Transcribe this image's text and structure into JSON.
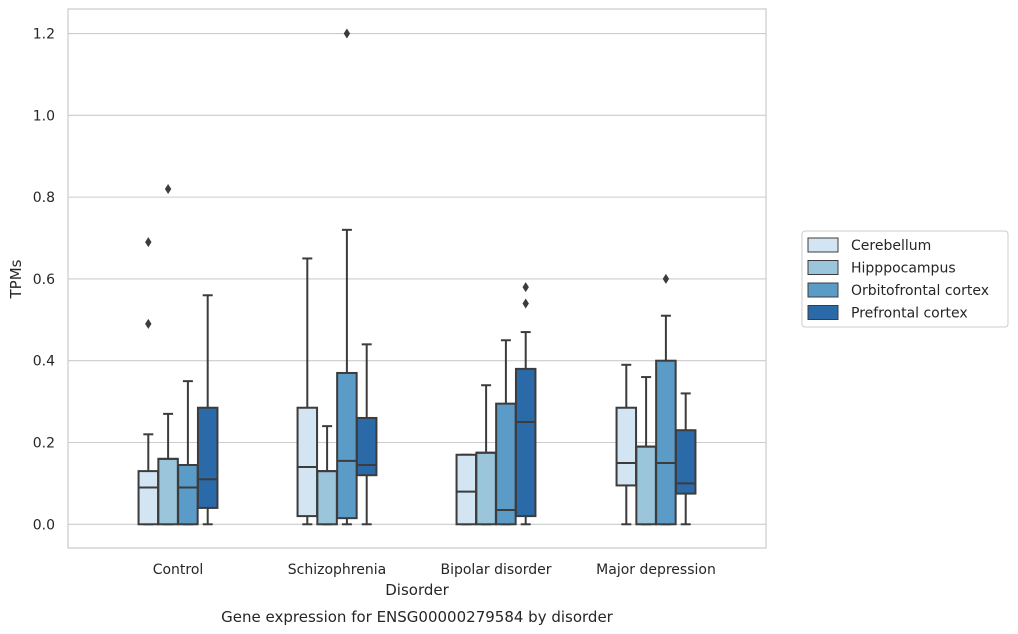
{
  "chart_data": {
    "type": "boxplot",
    "title": "Gene expression for ENSG00000279584 by disorder",
    "xlabel": "Disorder",
    "ylabel": "TPMs",
    "ylim": [
      -0.058,
      1.26
    ],
    "yticks": [
      0.0,
      0.2,
      0.4,
      0.6,
      0.8,
      1.0,
      1.2
    ],
    "ytick_labels": [
      "0.0",
      "0.2",
      "0.4",
      "0.6",
      "0.8",
      "1.0",
      "1.2"
    ],
    "grid": true,
    "legend_position": "right",
    "categories": [
      "Control",
      "Schizophrenia",
      "Bipolar disorder",
      "Major depression"
    ],
    "series": [
      {
        "name": "Cerebellum",
        "color": "#d3e4f3",
        "boxes": [
          {
            "whislo": 0.0,
            "q1": 0.0,
            "med": 0.09,
            "q3": 0.13,
            "whishi": 0.22,
            "fliers": [
              0.49,
              0.69
            ]
          },
          {
            "whislo": 0.0,
            "q1": 0.02,
            "med": 0.14,
            "q3": 0.285,
            "whishi": 0.65,
            "fliers": []
          },
          {
            "whislo": 0.0,
            "q1": 0.0,
            "med": 0.08,
            "q3": 0.17,
            "whishi": 0.17,
            "fliers": []
          },
          {
            "whislo": 0.0,
            "q1": 0.095,
            "med": 0.15,
            "q3": 0.285,
            "whishi": 0.39,
            "fliers": []
          }
        ]
      },
      {
        "name": "Hipppocampus",
        "color": "#9ac5db",
        "boxes": [
          {
            "whislo": 0.0,
            "q1": 0.0,
            "med": 0.16,
            "q3": 0.16,
            "whishi": 0.27,
            "fliers": [
              0.82
            ]
          },
          {
            "whislo": 0.0,
            "q1": 0.0,
            "med": 0.13,
            "q3": 0.13,
            "whishi": 0.24,
            "fliers": []
          },
          {
            "whislo": 0.0,
            "q1": 0.0,
            "med": 0.175,
            "q3": 0.175,
            "whishi": 0.34,
            "fliers": []
          },
          {
            "whislo": 0.0,
            "q1": 0.0,
            "med": 0.19,
            "q3": 0.19,
            "whishi": 0.36,
            "fliers": []
          }
        ]
      },
      {
        "name": "Orbitofrontal cortex",
        "color": "#5a9bc8",
        "boxes": [
          {
            "whislo": 0.0,
            "q1": 0.0,
            "med": 0.09,
            "q3": 0.145,
            "whishi": 0.35,
            "fliers": []
          },
          {
            "whislo": 0.0,
            "q1": 0.015,
            "med": 0.155,
            "q3": 0.37,
            "whishi": 0.72,
            "fliers": [
              1.2
            ]
          },
          {
            "whislo": 0.0,
            "q1": 0.0,
            "med": 0.035,
            "q3": 0.295,
            "whishi": 0.45,
            "fliers": []
          },
          {
            "whislo": 0.0,
            "q1": 0.0,
            "med": 0.15,
            "q3": 0.4,
            "whishi": 0.51,
            "fliers": [
              0.6
            ]
          }
        ]
      },
      {
        "name": "Prefrontal cortex",
        "color": "#2a6aa9",
        "boxes": [
          {
            "whislo": 0.0,
            "q1": 0.04,
            "med": 0.11,
            "q3": 0.285,
            "whishi": 0.56,
            "fliers": []
          },
          {
            "whislo": 0.0,
            "q1": 0.12,
            "med": 0.145,
            "q3": 0.26,
            "whishi": 0.44,
            "fliers": []
          },
          {
            "whislo": 0.0,
            "q1": 0.02,
            "med": 0.25,
            "q3": 0.38,
            "whishi": 0.47,
            "fliers": [
              0.54,
              0.58
            ]
          },
          {
            "whislo": 0.0,
            "q1": 0.075,
            "med": 0.1,
            "q3": 0.23,
            "whishi": 0.32,
            "fliers": []
          }
        ]
      }
    ]
  }
}
